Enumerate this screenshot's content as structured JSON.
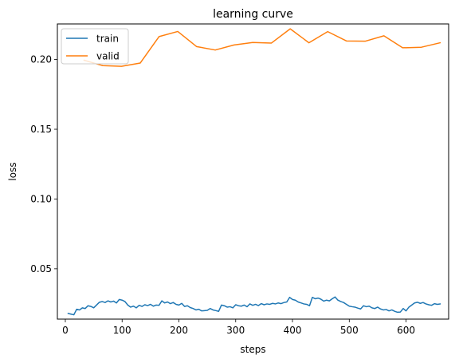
{
  "chart_data": {
    "type": "line",
    "title": "learning curve",
    "xlabel": "steps",
    "ylabel": "loss",
    "xlim": [
      -14,
      675
    ],
    "ylim": [
      0.0139,
      0.2255
    ],
    "xticks": [
      0,
      100,
      200,
      300,
      400,
      500,
      600
    ],
    "xtick_labels": [
      "0",
      "100",
      "200",
      "300",
      "400",
      "500",
      "600"
    ],
    "yticks": [
      0.05,
      0.1,
      0.15,
      0.2
    ],
    "ytick_labels": [
      "0.05",
      "0.10",
      "0.15",
      "0.20"
    ],
    "grid": false,
    "legend_position": "top-left",
    "series": [
      {
        "name": "train",
        "color": "#1f77b4",
        "x": [
          5,
          10,
          15,
          20,
          25,
          30,
          35,
          40,
          45,
          50,
          55,
          60,
          65,
          70,
          75,
          80,
          85,
          90,
          95,
          100,
          105,
          110,
          115,
          120,
          125,
          130,
          135,
          140,
          145,
          150,
          155,
          160,
          165,
          170,
          175,
          180,
          185,
          190,
          195,
          200,
          205,
          210,
          215,
          220,
          225,
          230,
          235,
          240,
          245,
          250,
          255,
          260,
          265,
          270,
          275,
          280,
          285,
          290,
          295,
          300,
          305,
          310,
          315,
          320,
          325,
          330,
          335,
          340,
          345,
          350,
          355,
          360,
          365,
          370,
          375,
          380,
          385,
          390,
          395,
          400,
          405,
          410,
          415,
          420,
          425,
          430,
          435,
          440,
          445,
          450,
          455,
          460,
          465,
          470,
          475,
          480,
          485,
          490,
          495,
          500,
          505,
          510,
          515,
          520,
          525,
          530,
          535,
          540,
          545,
          550,
          555,
          560,
          565,
          570,
          575,
          580,
          585,
          590,
          595,
          600,
          605,
          610,
          615,
          620,
          625,
          630,
          635,
          640,
          645,
          650,
          655,
          660
        ],
        "values": [
          0.018,
          0.0175,
          0.017,
          0.021,
          0.0205,
          0.022,
          0.0215,
          0.0235,
          0.023,
          0.022,
          0.024,
          0.026,
          0.0265,
          0.0258,
          0.027,
          0.0262,
          0.0268,
          0.0255,
          0.028,
          0.0275,
          0.0265,
          0.024,
          0.0225,
          0.0232,
          0.022,
          0.0238,
          0.023,
          0.0242,
          0.0236,
          0.0245,
          0.0232,
          0.024,
          0.0238,
          0.027,
          0.0255,
          0.0262,
          0.025,
          0.0258,
          0.0245,
          0.024,
          0.0252,
          0.023,
          0.0235,
          0.0222,
          0.0215,
          0.0205,
          0.021,
          0.0198,
          0.02,
          0.0202,
          0.0215,
          0.0205,
          0.02,
          0.0195,
          0.024,
          0.0235,
          0.0225,
          0.0228,
          0.022,
          0.0242,
          0.0235,
          0.0232,
          0.024,
          0.0228,
          0.0248,
          0.0238,
          0.0245,
          0.0236,
          0.025,
          0.0242,
          0.0248,
          0.0245,
          0.0252,
          0.0248,
          0.0255,
          0.025,
          0.0258,
          0.0262,
          0.0295,
          0.028,
          0.0275,
          0.0262,
          0.0255,
          0.0248,
          0.0245,
          0.0235,
          0.0295,
          0.0285,
          0.029,
          0.0282,
          0.0268,
          0.0275,
          0.027,
          0.0285,
          0.0298,
          0.0275,
          0.0265,
          0.0258,
          0.0245,
          0.0232,
          0.0228,
          0.0225,
          0.0218,
          0.0212,
          0.0235,
          0.0228,
          0.0232,
          0.022,
          0.0215,
          0.0225,
          0.0212,
          0.0205,
          0.0208,
          0.0198,
          0.0205,
          0.0195,
          0.0188,
          0.019,
          0.0215,
          0.0198,
          0.0225,
          0.024,
          0.0255,
          0.026,
          0.0252,
          0.0258,
          0.0248,
          0.0242,
          0.0238,
          0.025,
          0.0245,
          0.0248
        ]
      },
      {
        "name": "valid",
        "color": "#ff7f0e",
        "x": [
          33,
          66,
          99,
          132,
          165,
          198,
          231,
          264,
          297,
          330,
          363,
          396,
          429,
          462,
          495,
          528,
          561,
          594,
          627,
          660
        ],
        "values": [
          0.1995,
          0.1956,
          0.1951,
          0.1975,
          0.2164,
          0.2201,
          0.2093,
          0.2068,
          0.2104,
          0.2122,
          0.2118,
          0.222,
          0.212,
          0.22,
          0.2133,
          0.2131,
          0.217,
          0.2084,
          0.2088,
          0.212
        ]
      }
    ]
  }
}
